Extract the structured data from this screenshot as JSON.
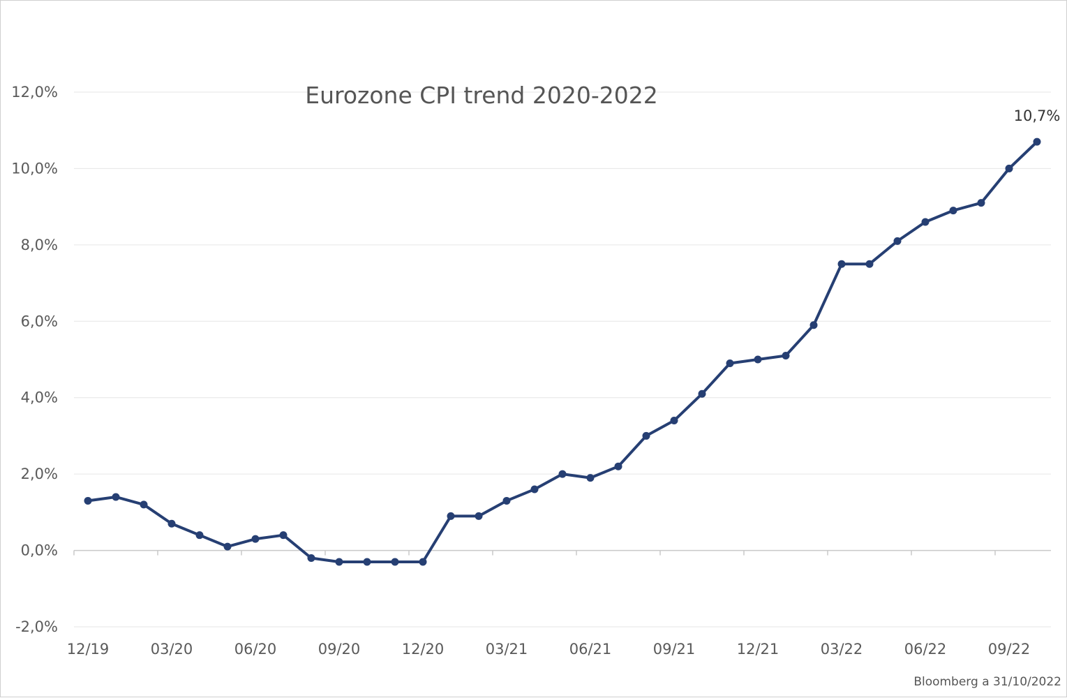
{
  "chart_data": {
    "type": "line",
    "title": "Eurozone CPI trend 2020-2022",
    "source": "Bloomberg a 31/10/2022",
    "xlabel": "",
    "ylabel": "",
    "ylim": [
      -2,
      12
    ],
    "yticks": [
      -2,
      0,
      2,
      4,
      6,
      8,
      10,
      12
    ],
    "ytick_labels": [
      "-2,0%",
      "0,0%",
      "2,0%",
      "4,0%",
      "6,0%",
      "8,0%",
      "10,0%",
      "12,0%"
    ],
    "x": [
      "12/19",
      "01/20",
      "02/20",
      "03/20",
      "04/20",
      "05/20",
      "06/20",
      "07/20",
      "08/20",
      "09/20",
      "10/20",
      "11/20",
      "12/20",
      "01/21",
      "02/21",
      "03/21",
      "04/21",
      "05/21",
      "06/21",
      "07/21",
      "08/21",
      "09/21",
      "10/21",
      "11/21",
      "12/21",
      "01/22",
      "02/22",
      "03/22",
      "04/22",
      "05/22",
      "06/22",
      "07/22",
      "08/22",
      "09/22",
      "10/22"
    ],
    "xtick_labels": [
      "12/19",
      "03/20",
      "06/20",
      "09/20",
      "12/20",
      "03/21",
      "06/21",
      "09/21",
      "12/21",
      "03/22",
      "06/22",
      "09/22"
    ],
    "xtick_every": 3,
    "series": [
      {
        "color": "#263f73",
        "values": [
          1.3,
          1.4,
          1.2,
          0.7,
          0.4,
          0.1,
          0.3,
          0.4,
          -0.2,
          -0.3,
          -0.3,
          -0.3,
          -0.3,
          0.9,
          0.9,
          1.3,
          1.6,
          2.0,
          1.9,
          2.2,
          3.0,
          3.4,
          4.1,
          4.9,
          5.0,
          5.1,
          5.9,
          7.5,
          7.5,
          8.1,
          8.6,
          8.9,
          9.1,
          10.0,
          10.7
        ]
      }
    ],
    "data_labels": [
      {
        "index": 34,
        "text": "10,7%"
      }
    ],
    "grid": true,
    "legend": "none"
  }
}
